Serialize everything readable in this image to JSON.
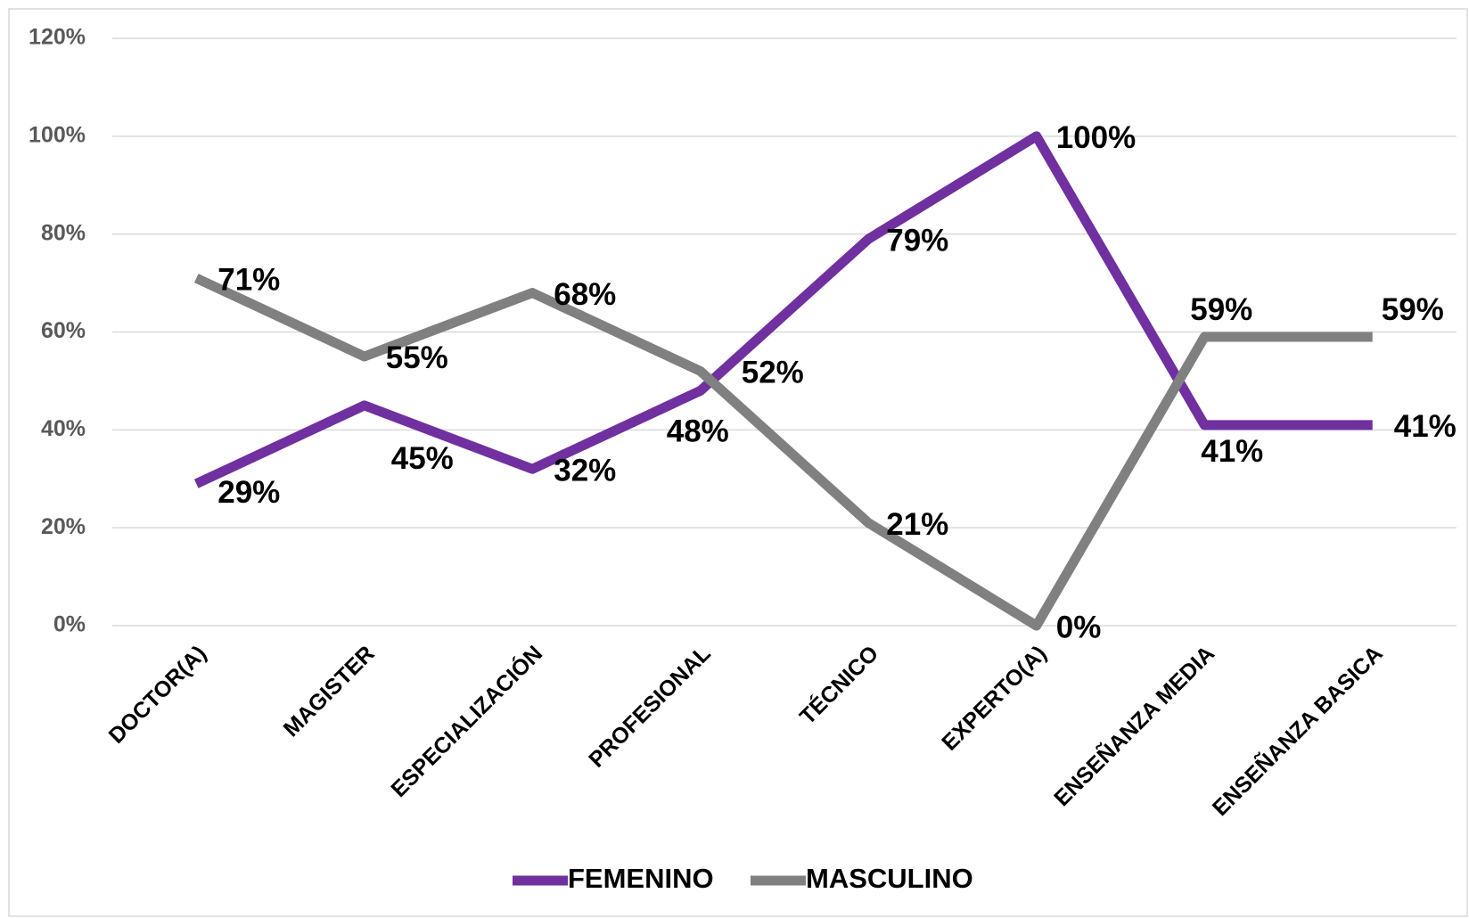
{
  "chart_data": {
    "type": "line",
    "categories": [
      "DOCTOR(A)",
      "MAGISTER",
      "ESPECIALIZACIÓN",
      "PROFESIONAL",
      "TÉCNICO",
      "EXPERTO(A)",
      "ENSEÑANZA MEDIA",
      "ENSEÑANZA BASICA"
    ],
    "series": [
      {
        "name": "FEMENINO",
        "color": "#7030a0",
        "values": [
          29,
          45,
          32,
          48,
          79,
          100,
          41,
          41
        ],
        "value_labels": [
          "29%",
          "45%",
          "32%",
          "48%",
          "79%",
          "100%",
          "41%",
          "41%"
        ]
      },
      {
        "name": "MASCULINO",
        "color": "#808080",
        "values": [
          71,
          55,
          68,
          52,
          21,
          0,
          59,
          59
        ],
        "value_labels": [
          "71%",
          "55%",
          "68%",
          "52%",
          "21%",
          "0%",
          "59%",
          "59%"
        ]
      }
    ],
    "ylim": [
      0,
      120
    ],
    "yticks": [
      {
        "value": 0,
        "label": "0%"
      },
      {
        "value": 20,
        "label": "20%"
      },
      {
        "value": 40,
        "label": "40%"
      },
      {
        "value": 60,
        "label": "60%"
      },
      {
        "value": 80,
        "label": "80%"
      },
      {
        "value": 100,
        "label": "100%"
      },
      {
        "value": 120,
        "label": "120%"
      }
    ],
    "grid": true,
    "legend": "bottom"
  }
}
